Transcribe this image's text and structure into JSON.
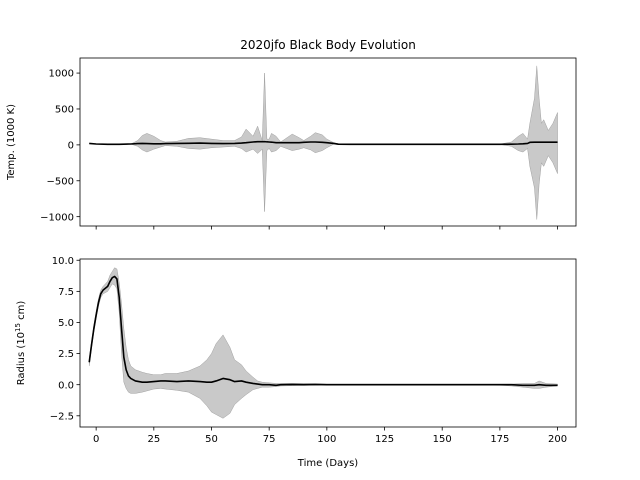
{
  "chart_data": [
    {
      "type": "area",
      "title": "2020jfo Black Body Evolution",
      "xlabel": "",
      "ylabel": "Temp. (1000 K)",
      "xlim": [
        -7,
        208
      ],
      "ylim": [
        -1130,
        1210
      ],
      "xticks": [
        0,
        25,
        50,
        75,
        100,
        125,
        150,
        175,
        200
      ],
      "show_xtick_labels": false,
      "yticks": [
        -1000,
        -500,
        0,
        500,
        1000
      ],
      "ytick_labels": [
        "−1000",
        "−500",
        "0",
        "500",
        "1000"
      ],
      "grid": false,
      "series": [
        {
          "color": "#000000",
          "band_color": "#bfbfbf",
          "x": [
            -3,
            0,
            5,
            10,
            15,
            18,
            20,
            22,
            25,
            28,
            30,
            35,
            40,
            45,
            50,
            55,
            60,
            63,
            65,
            68,
            70,
            72,
            73,
            74,
            75,
            76,
            78,
            80,
            85,
            88,
            90,
            93,
            95,
            98,
            100,
            103,
            105,
            110,
            120,
            130,
            140,
            150,
            160,
            170,
            175,
            180,
            183,
            185,
            187,
            188,
            190,
            191,
            192,
            193,
            194,
            196,
            198,
            200
          ],
          "y": [
            20,
            12,
            8,
            8,
            12,
            18,
            20,
            18,
            15,
            15,
            18,
            20,
            22,
            25,
            20,
            18,
            20,
            25,
            30,
            40,
            45,
            45,
            45,
            42,
            40,
            38,
            30,
            30,
            30,
            30,
            35,
            40,
            40,
            35,
            30,
            20,
            10,
            8,
            8,
            8,
            8,
            8,
            8,
            8,
            8,
            10,
            12,
            15,
            20,
            35,
            38,
            38,
            38,
            38,
            38,
            38,
            38,
            38
          ],
          "upper": [
            20,
            12,
            8,
            8,
            12,
            60,
            130,
            160,
            120,
            60,
            40,
            50,
            90,
            100,
            80,
            60,
            60,
            110,
            220,
            120,
            260,
            60,
            1000,
            80,
            80,
            160,
            120,
            40,
            150,
            100,
            60,
            120,
            170,
            140,
            80,
            30,
            15,
            10,
            10,
            10,
            10,
            10,
            10,
            10,
            10,
            40,
            120,
            160,
            80,
            300,
            650,
            1100,
            650,
            300,
            350,
            200,
            300,
            450
          ],
          "lower": [
            20,
            12,
            8,
            8,
            12,
            -20,
            -70,
            -100,
            -60,
            -30,
            -10,
            -20,
            -50,
            -60,
            -40,
            -30,
            -20,
            -50,
            -100,
            -60,
            -120,
            -60,
            -930,
            -80,
            -50,
            -100,
            -80,
            -20,
            -80,
            -60,
            -40,
            -70,
            -110,
            -80,
            -40,
            10,
            5,
            6,
            6,
            6,
            6,
            6,
            6,
            6,
            6,
            -20,
            -80,
            -100,
            -50,
            -300,
            -600,
            -1040,
            -550,
            -250,
            -300,
            -150,
            -250,
            -400
          ]
        }
      ]
    },
    {
      "type": "area",
      "title": "",
      "xlabel": "Time (Days)",
      "ylabel": "Radius (10",
      "ylabel_sup": "15",
      "ylabel_tail": " cm)",
      "xlim": [
        -7,
        208
      ],
      "ylim": [
        -3.4,
        10.1
      ],
      "xticks": [
        0,
        25,
        50,
        75,
        100,
        125,
        150,
        175,
        200
      ],
      "show_xtick_labels": true,
      "yticks": [
        -2.5,
        0.0,
        2.5,
        5.0,
        7.5,
        10.0
      ],
      "ytick_labels": [
        "−2.5",
        "0.0",
        "2.5",
        "5.0",
        "7.5",
        "10.0"
      ],
      "grid": false,
      "series": [
        {
          "color": "#000000",
          "band_color": "#bfbfbf",
          "x": [
            -3,
            -2,
            -1,
            0,
            1,
            2,
            3,
            5,
            6,
            7,
            8,
            9,
            10,
            11,
            12,
            13,
            14,
            15,
            17,
            20,
            22,
            25,
            28,
            30,
            35,
            40,
            45,
            48,
            50,
            52,
            55,
            58,
            60,
            63,
            65,
            68,
            70,
            72,
            75,
            78,
            80,
            85,
            90,
            95,
            100,
            110,
            120,
            130,
            140,
            150,
            160,
            170,
            175,
            180,
            185,
            190,
            192,
            195,
            200
          ],
          "y": [
            1.8,
            3.2,
            4.5,
            5.6,
            6.6,
            7.3,
            7.6,
            7.9,
            8.3,
            8.6,
            8.7,
            8.5,
            7.0,
            4.5,
            2.2,
            1.2,
            0.7,
            0.5,
            0.3,
            0.2,
            0.2,
            0.25,
            0.3,
            0.3,
            0.25,
            0.3,
            0.25,
            0.2,
            0.2,
            0.3,
            0.5,
            0.4,
            0.25,
            0.3,
            0.2,
            0.1,
            0.05,
            0.0,
            0.0,
            -0.05,
            0.0,
            0.02,
            0.0,
            0.02,
            0.0,
            0.0,
            0.0,
            0.0,
            0.0,
            0.0,
            0.0,
            0.0,
            0.0,
            0.0,
            -0.05,
            -0.05,
            0.0,
            -0.05,
            -0.05
          ],
          "upper": [
            2.1,
            3.5,
            4.8,
            5.9,
            6.9,
            7.6,
            7.9,
            8.3,
            8.8,
            9.1,
            9.4,
            9.3,
            8.2,
            6.5,
            4.5,
            3.0,
            2.0,
            1.5,
            1.2,
            1.0,
            0.9,
            0.8,
            0.8,
            0.9,
            0.9,
            1.1,
            1.5,
            2.0,
            2.5,
            3.3,
            4.0,
            3.0,
            2.0,
            1.6,
            1.1,
            0.6,
            0.3,
            0.2,
            0.15,
            0.1,
            0.1,
            0.1,
            0.1,
            0.08,
            0.05,
            0.05,
            0.05,
            0.05,
            0.05,
            0.05,
            0.05,
            0.05,
            0.05,
            0.05,
            0.1,
            0.1,
            0.3,
            0.1,
            0.05
          ],
          "lower": [
            1.5,
            2.9,
            4.2,
            5.3,
            6.3,
            7.0,
            7.3,
            7.5,
            7.8,
            8.1,
            8.0,
            7.7,
            5.8,
            2.5,
            0.2,
            -0.3,
            -0.6,
            -0.7,
            -0.7,
            -0.6,
            -0.5,
            -0.35,
            -0.3,
            -0.35,
            -0.45,
            -0.6,
            -1.1,
            -1.7,
            -2.2,
            -2.4,
            -2.7,
            -2.3,
            -1.6,
            -1.1,
            -0.8,
            -0.4,
            -0.3,
            -0.2,
            -0.2,
            -0.15,
            -0.1,
            -0.08,
            -0.06,
            -0.05,
            -0.04,
            -0.04,
            -0.04,
            -0.04,
            -0.04,
            -0.04,
            -0.04,
            -0.04,
            -0.05,
            -0.1,
            -0.2,
            -0.3,
            -0.3,
            -0.2,
            -0.1
          ]
        }
      ]
    }
  ]
}
